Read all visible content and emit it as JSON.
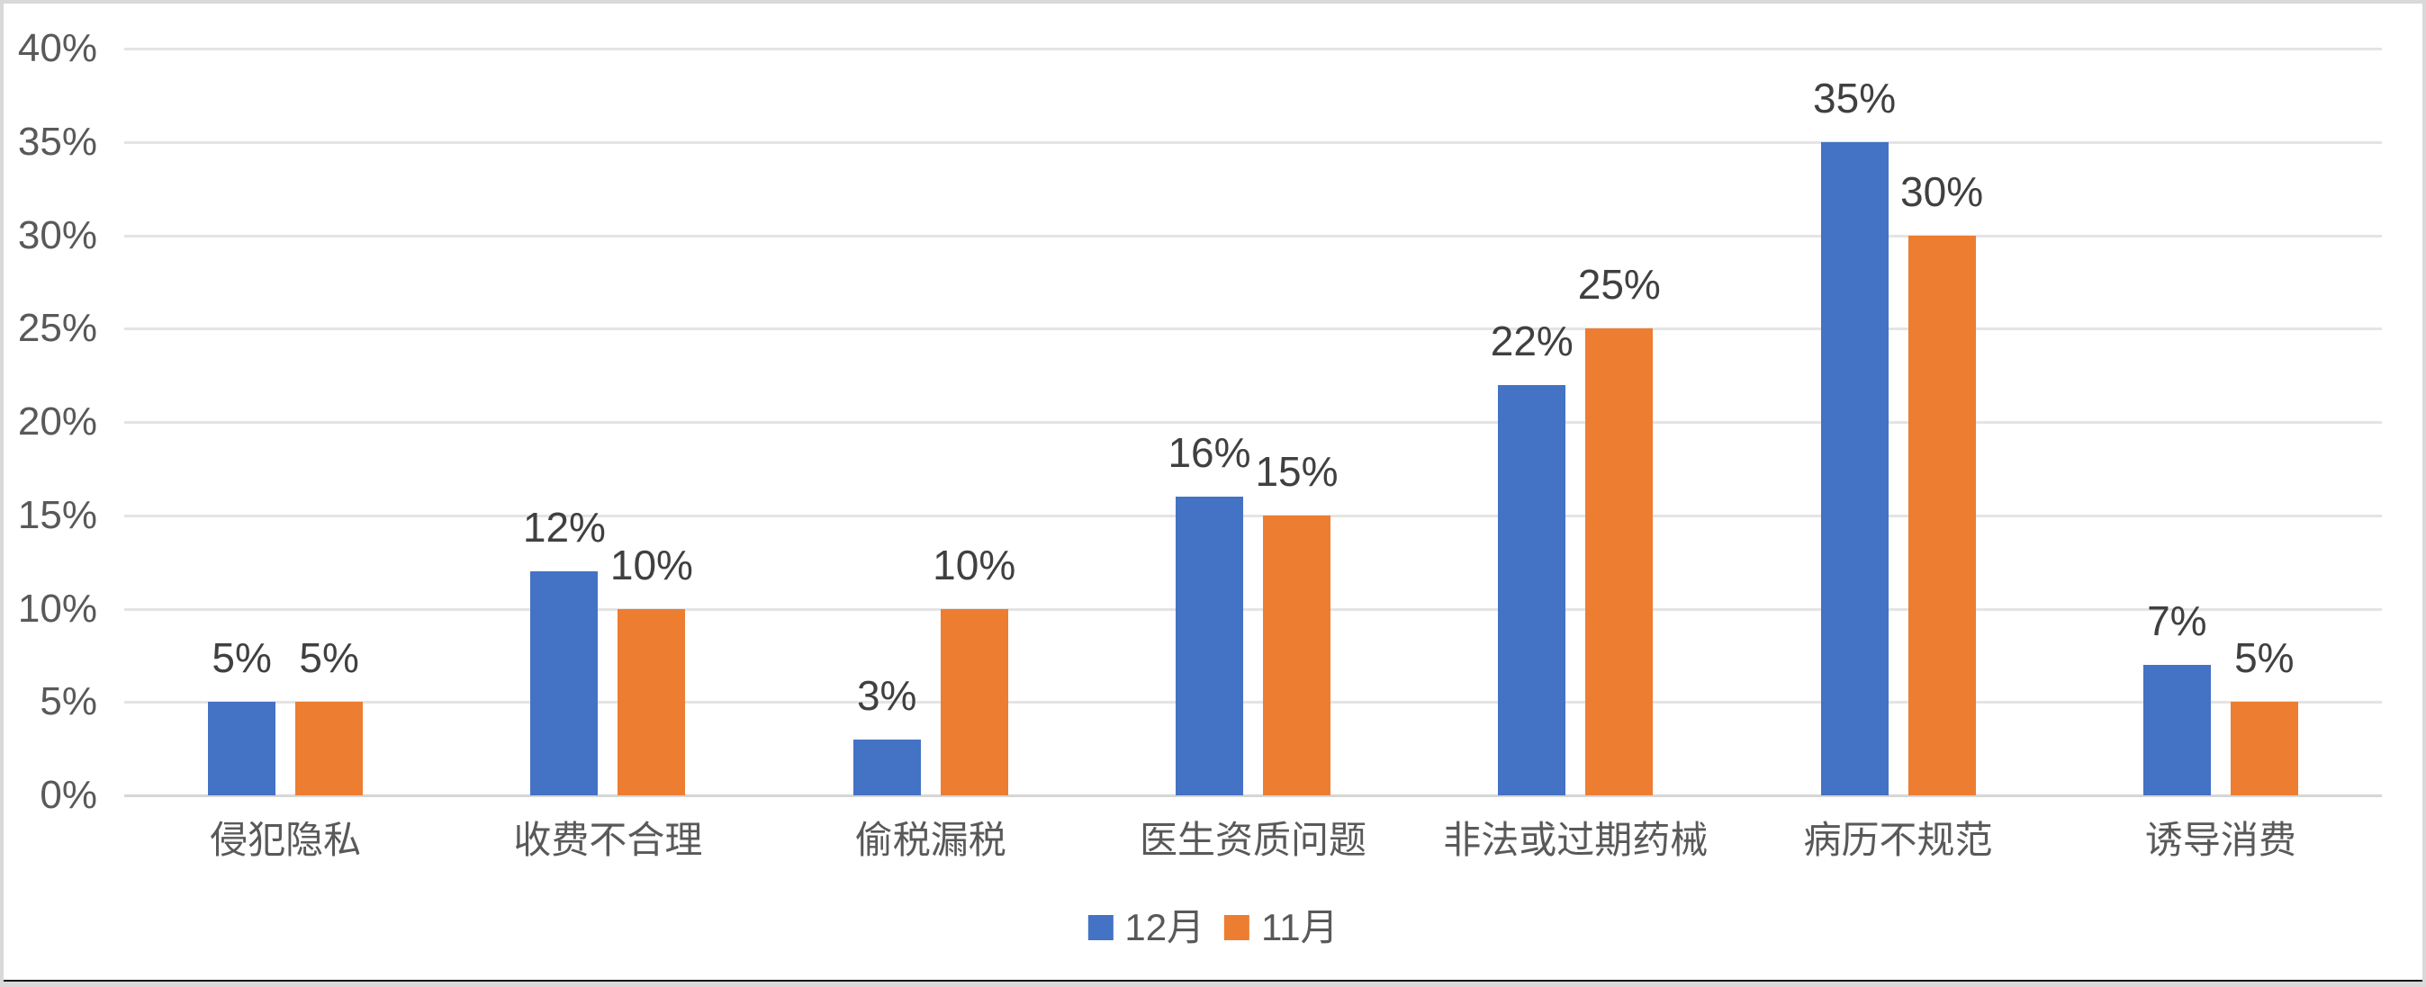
{
  "chart_data": {
    "type": "bar",
    "title": "",
    "categories": [
      "侵犯隐私",
      "收费不合理",
      "偷税漏税",
      "医生资质问题",
      "非法或过期药械",
      "病历不规范",
      "诱导消费"
    ],
    "series": [
      {
        "name": "12月",
        "color": "#4472C4",
        "values": [
          5,
          12,
          3,
          16,
          22,
          35,
          7
        ]
      },
      {
        "name": "11月",
        "color": "#ED7D31",
        "values": [
          5,
          10,
          10,
          15,
          25,
          30,
          5
        ]
      }
    ],
    "data_labels": [
      [
        "5%",
        "12%",
        "3%",
        "16%",
        "22%",
        "35%",
        "7%"
      ],
      [
        "5%",
        "10%",
        "10%",
        "15%",
        "25%",
        "30%",
        "5%"
      ]
    ],
    "xlabel": "",
    "ylabel": "",
    "ylim": [
      0,
      40
    ],
    "ytick_step": 5,
    "ytick_labels": [
      "0%",
      "5%",
      "10%",
      "15%",
      "20%",
      "25%",
      "30%",
      "35%",
      "40%"
    ],
    "grid": true,
    "legend_position": "bottom-center",
    "data_label_position": "outside-end"
  },
  "legend": {
    "items": [
      {
        "label": "12月",
        "color": "#4472C4"
      },
      {
        "label": "11月",
        "color": "#ED7D31"
      }
    ]
  },
  "colors": {
    "series_blue": "#4472C4",
    "series_orange": "#ED7D31",
    "gridline": "#E4E4E4",
    "axis_line": "#D6D6D6",
    "axis_text": "#595959",
    "data_label_text": "#404040",
    "frame_border": "#D9D9D9",
    "background": "#FFFFFF"
  }
}
